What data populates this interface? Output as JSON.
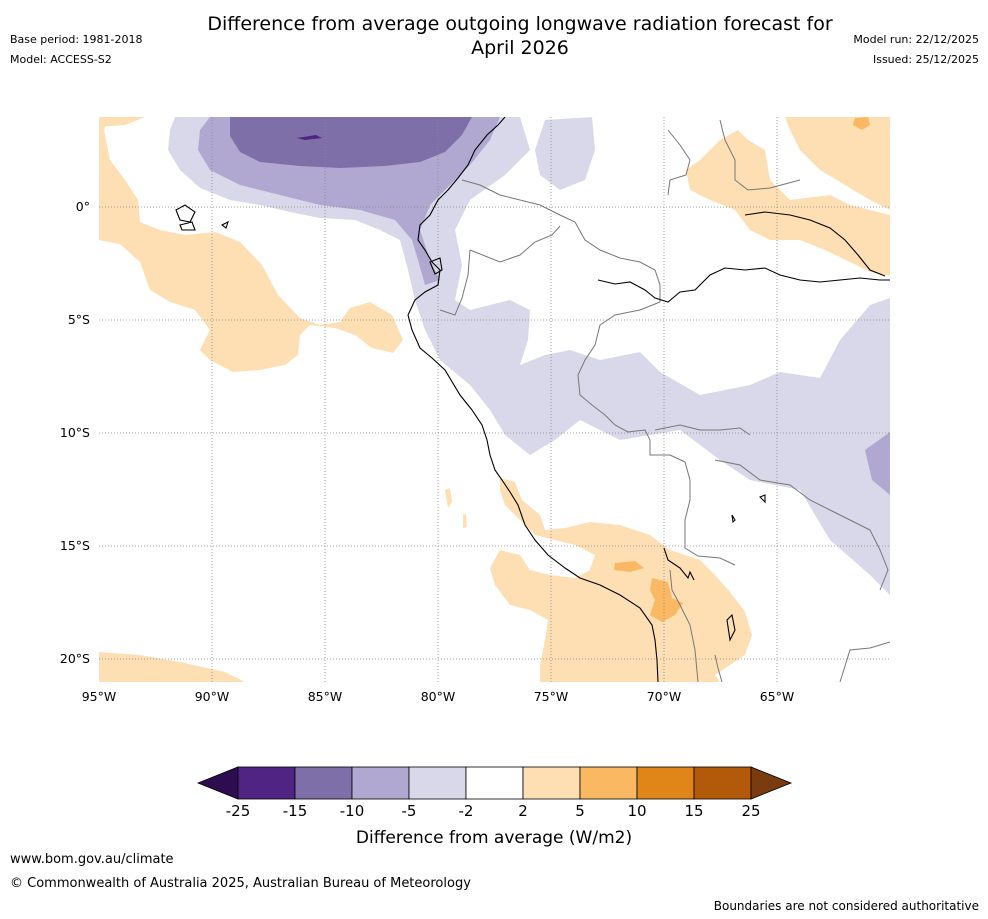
{
  "title": {
    "line1": "Difference from average outgoing longwave radiation forecast for",
    "line2": "April 2026"
  },
  "meta": {
    "base_period": "Base period: 1981-2018",
    "model": "Model: ACCESS-S2",
    "model_run": "Model run: 22/12/2025",
    "issued": "Issued: 25/12/2025"
  },
  "map": {
    "lat_labels": [
      "0°",
      "5°S",
      "10°S",
      "15°S",
      "20°S"
    ],
    "lon_labels": [
      "95°W",
      "90°W",
      "85°W",
      "80°W",
      "75°W",
      "70°W",
      "65°W"
    ]
  },
  "colorbar": {
    "ticks": [
      "-25",
      "-15",
      "-10",
      "-5",
      "-2",
      "2",
      "5",
      "10",
      "15",
      "25"
    ],
    "colors": {
      "below": "#2d0d4f",
      "bins": [
        "#4f2482",
        "#7f6fa9",
        "#b0a8d0",
        "#d9d8ea",
        "#ffffff",
        "#fddfb3",
        "#fab862",
        "#e08518",
        "#b35a0a"
      ],
      "above": "#7a3b0e"
    },
    "label": "Difference from average (W/m2)"
  },
  "footer": {
    "url": "www.bom.gov.au/climate",
    "copyright": "© Commonwealth of Australia 2025, Australian Bureau of Meteorology",
    "note": "Boundaries are not considered authoritative"
  }
}
